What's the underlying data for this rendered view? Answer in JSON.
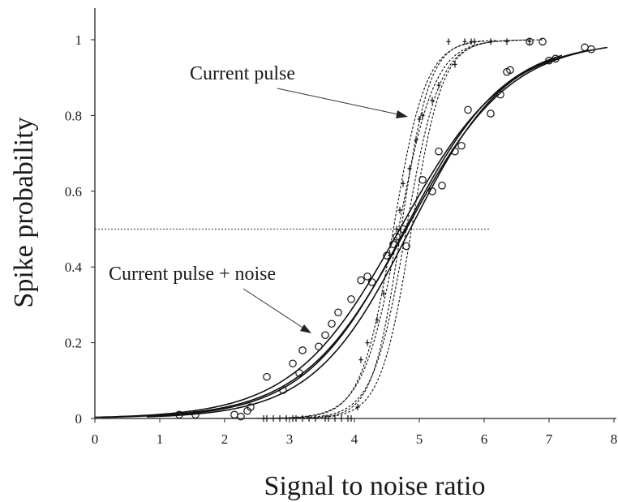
{
  "chart_data": {
    "type": "scatter",
    "xlabel": "Signal to noise ratio",
    "ylabel": "Spike probability",
    "xlim": [
      0,
      8
    ],
    "ylim": [
      0,
      1
    ],
    "xticks": [
      "0",
      "1",
      "2",
      "3",
      "4",
      "5",
      "6",
      "7",
      "8"
    ],
    "yticks": [
      "0",
      "0.2",
      "0.4",
      "0.6",
      "0.8",
      "1"
    ],
    "threshold": {
      "y": 0.5,
      "x_from": 0,
      "x_to": 6.1
    },
    "annotations": [
      {
        "text": "Current pulse",
        "x": 3.5,
        "y": 0.89,
        "arrow_from": [
          4.9,
          0.8
        ],
        "arrow_to": [
          4.9,
          0.8
        ]
      },
      {
        "text": "Current pulse + noise",
        "x": 2.1,
        "y": 0.37,
        "arrow_from": [
          2.1,
          0.37
        ],
        "arrow_to": [
          3.3,
          0.22
        ]
      }
    ],
    "series": [
      {
        "style": "solid",
        "fits": [
          {
            "x50": 4.7,
            "slope": 1.22,
            "x_from": 0.0,
            "x_to": 7.6
          },
          {
            "x50": 4.8,
            "slope": 1.25,
            "x_from": 0.1,
            "x_to": 7.9
          },
          {
            "x50": 4.78,
            "slope": 1.3,
            "x_from": 0.9,
            "x_to": 7.2
          },
          {
            "x50": 4.86,
            "slope": 1.34,
            "x_from": 0.8,
            "x_to": 7.1
          }
        ],
        "marker": "circle",
        "points": [
          [
            1.3,
            0.01
          ],
          [
            1.55,
            0.01
          ],
          [
            2.15,
            0.01
          ],
          [
            2.25,
            0.005
          ],
          [
            2.35,
            0.02
          ],
          [
            2.4,
            0.03
          ],
          [
            2.65,
            0.11
          ],
          [
            2.9,
            0.075
          ],
          [
            3.05,
            0.145
          ],
          [
            3.15,
            0.12
          ],
          [
            3.2,
            0.18
          ],
          [
            3.45,
            0.19
          ],
          [
            3.55,
            0.22
          ],
          [
            3.65,
            0.25
          ],
          [
            3.75,
            0.28
          ],
          [
            3.95,
            0.315
          ],
          [
            4.1,
            0.365
          ],
          [
            4.2,
            0.375
          ],
          [
            4.27,
            0.36
          ],
          [
            4.5,
            0.43
          ],
          [
            4.6,
            0.46
          ],
          [
            4.65,
            0.48
          ],
          [
            4.75,
            0.5
          ],
          [
            4.8,
            0.455
          ],
          [
            5.05,
            0.63
          ],
          [
            5.2,
            0.6
          ],
          [
            5.3,
            0.705
          ],
          [
            5.35,
            0.615
          ],
          [
            5.55,
            0.705
          ],
          [
            5.65,
            0.72
          ],
          [
            5.75,
            0.815
          ],
          [
            6.1,
            0.805
          ],
          [
            6.25,
            0.855
          ],
          [
            6.35,
            0.915
          ],
          [
            6.4,
            0.92
          ],
          [
            6.7,
            0.995
          ],
          [
            6.9,
            0.995
          ],
          [
            7.0,
            0.945
          ],
          [
            7.1,
            0.95
          ],
          [
            7.55,
            0.98
          ],
          [
            7.65,
            0.975
          ]
        ]
      },
      {
        "style": "dashed",
        "fits": [
          {
            "x50": 4.6,
            "slope": 4.0,
            "x_from": 1.7,
            "x_to": 6.2
          },
          {
            "x50": 4.68,
            "slope": 3.6,
            "x_from": 1.8,
            "x_to": 6.5
          },
          {
            "x50": 4.72,
            "slope": 4.6,
            "x_from": 2.3,
            "x_to": 6.0
          },
          {
            "x50": 4.8,
            "slope": 3.9,
            "x_from": 2.5,
            "x_to": 6.7
          },
          {
            "x50": 4.88,
            "slope": 4.2,
            "x_from": 2.6,
            "x_to": 6.9
          }
        ],
        "marker": "plus",
        "points": [
          [
            2.6,
            0.0
          ],
          [
            2.65,
            0.0
          ],
          [
            2.75,
            0.0
          ],
          [
            2.85,
            0.0
          ],
          [
            2.95,
            0.0
          ],
          [
            3.05,
            0.0
          ],
          [
            3.1,
            0.0
          ],
          [
            3.2,
            0.0
          ],
          [
            3.3,
            0.0
          ],
          [
            3.4,
            0.0
          ],
          [
            3.55,
            0.0
          ],
          [
            3.6,
            0.0
          ],
          [
            3.7,
            0.0
          ],
          [
            3.8,
            0.0
          ],
          [
            3.9,
            0.0
          ],
          [
            3.95,
            0.0
          ],
          [
            4.05,
            0.03
          ],
          [
            4.1,
            0.155
          ],
          [
            4.2,
            0.2
          ],
          [
            4.35,
            0.26
          ],
          [
            4.45,
            0.33
          ],
          [
            4.55,
            0.43
          ],
          [
            4.65,
            0.5
          ],
          [
            4.7,
            0.55
          ],
          [
            4.75,
            0.62
          ],
          [
            4.85,
            0.66
          ],
          [
            4.95,
            0.735
          ],
          [
            5.0,
            0.79
          ],
          [
            5.05,
            0.8
          ],
          [
            5.2,
            0.84
          ],
          [
            5.3,
            0.88
          ],
          [
            5.45,
            0.995
          ],
          [
            5.55,
            0.935
          ],
          [
            5.7,
            0.995
          ],
          [
            5.8,
            0.995
          ],
          [
            5.85,
            0.995
          ],
          [
            6.1,
            0.995
          ],
          [
            6.35,
            0.995
          ],
          [
            6.7,
            0.995
          ]
        ]
      }
    ]
  }
}
